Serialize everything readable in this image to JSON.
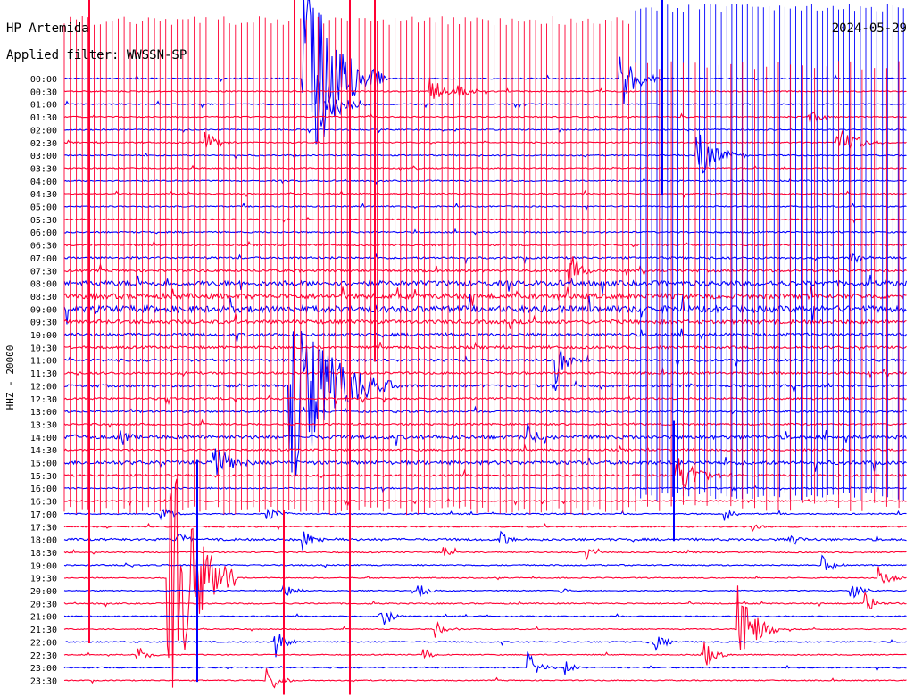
{
  "header": {
    "station": "HP Artemida",
    "filter_text": "Applied filter: WWSSN-SP",
    "date": "2024-05-29"
  },
  "chart_data": {
    "type": "helicorder",
    "title": "HP Artemida",
    "subtitle": "Applied filter: WWSSN-SP",
    "date": "2024-05-29",
    "ylabel": "HHZ - 20000",
    "minutes_per_line": 30,
    "colors": {
      "even_line": "#0000ff",
      "odd_line": "#ff0033",
      "background": "#ffffff"
    },
    "line_labels": [
      "00:00",
      "00:30",
      "01:00",
      "01:30",
      "02:00",
      "02:30",
      "03:00",
      "03:30",
      "04:00",
      "04:30",
      "05:00",
      "05:30",
      "06:00",
      "06:30",
      "07:00",
      "07:30",
      "08:00",
      "08:30",
      "09:00",
      "09:30",
      "10:00",
      "10:30",
      "11:00",
      "11:30",
      "12:00",
      "12:30",
      "13:00",
      "13:30",
      "14:00",
      "14:30",
      "15:00",
      "15:30",
      "16:00",
      "16:30",
      "17:00",
      "17:30",
      "18:00",
      "18:30",
      "19:00",
      "19:30",
      "20:00",
      "20:30",
      "21:00",
      "21:30",
      "22:00",
      "22:30",
      "23:00",
      "23:30"
    ],
    "noise_levels": [
      0.5,
      0.5,
      0.5,
      0.5,
      0.5,
      0.5,
      0.5,
      0.5,
      0.5,
      0.5,
      0.5,
      0.5,
      0.6,
      0.7,
      0.8,
      1.0,
      2.0,
      2.0,
      2.5,
      1.5,
      1.2,
      1.0,
      1.0,
      0.9,
      1.0,
      0.8,
      0.8,
      0.7,
      1.5,
      0.8,
      1.5,
      0.8,
      0.6,
      0.6,
      0.5,
      0.5,
      0.9,
      0.5,
      0.5,
      0.4,
      0.4,
      0.5,
      0.4,
      0.4,
      0.5,
      0.4,
      0.5,
      0.4
    ],
    "events": [
      {
        "line": 0,
        "minute": 8.5,
        "amplitude": 150,
        "duration_min": 3
      },
      {
        "line": 0,
        "minute": 19.8,
        "amplitude": 40,
        "duration_min": 1.5
      },
      {
        "line": 1,
        "minute": 13,
        "amplitude": 18,
        "duration_min": 1.5
      },
      {
        "line": 1,
        "minute": 14,
        "amplitude": 12,
        "duration_min": 1
      },
      {
        "line": 2,
        "minute": 9,
        "amplitude": 40,
        "duration_min": 2
      },
      {
        "line": 3,
        "minute": 26.5,
        "amplitude": 12,
        "duration_min": 1
      },
      {
        "line": 5,
        "minute": 27.5,
        "amplitude": 20,
        "duration_min": 2
      },
      {
        "line": 5,
        "minute": 5,
        "amplitude": 14,
        "duration_min": 1.5
      },
      {
        "line": 6,
        "minute": 22.5,
        "amplitude": 30,
        "duration_min": 2
      },
      {
        "line": 14,
        "minute": 28,
        "amplitude": 10,
        "duration_min": 1
      },
      {
        "line": 15,
        "minute": 18,
        "amplitude": 25,
        "duration_min": 1.2
      },
      {
        "line": 22,
        "minute": 17.5,
        "amplitude": 30,
        "duration_min": 1
      },
      {
        "line": 24,
        "minute": 8,
        "amplitude": 130,
        "duration_min": 4
      },
      {
        "line": 24,
        "minute": 11,
        "amplitude": 15,
        "duration_min": 1
      },
      {
        "line": 28,
        "minute": 2,
        "amplitude": 10,
        "duration_min": 1
      },
      {
        "line": 28,
        "minute": 16.5,
        "amplitude": 14,
        "duration_min": 1
      },
      {
        "line": 30,
        "minute": 5.3,
        "amplitude": 25,
        "duration_min": 1.5
      },
      {
        "line": 31,
        "minute": 21.8,
        "amplitude": 30,
        "duration_min": 2
      },
      {
        "line": 34,
        "minute": 3.4,
        "amplitude": 12,
        "duration_min": 1
      },
      {
        "line": 34,
        "minute": 7.2,
        "amplitude": 10,
        "duration_min": 1.2
      },
      {
        "line": 34,
        "minute": 23.5,
        "amplitude": 8,
        "duration_min": 0.8
      },
      {
        "line": 35,
        "minute": 24.5,
        "amplitude": 6,
        "duration_min": 0.6
      },
      {
        "line": 36,
        "minute": 4,
        "amplitude": 10,
        "duration_min": 1
      },
      {
        "line": 36,
        "minute": 8.5,
        "amplitude": 12,
        "duration_min": 1.5
      },
      {
        "line": 36,
        "minute": 15.5,
        "amplitude": 10,
        "duration_min": 1
      },
      {
        "line": 36,
        "minute": 25.8,
        "amplitude": 10,
        "duration_min": 1
      },
      {
        "line": 37,
        "minute": 13.5,
        "amplitude": 8,
        "duration_min": 0.8
      },
      {
        "line": 37,
        "minute": 18.6,
        "amplitude": 8,
        "duration_min": 0.8
      },
      {
        "line": 38,
        "minute": 2.2,
        "amplitude": 6,
        "duration_min": 0.6
      },
      {
        "line": 38,
        "minute": 27,
        "amplitude": 12,
        "duration_min": 1
      },
      {
        "line": 39,
        "minute": 3.7,
        "amplitude": 180,
        "duration_min": 2.5
      },
      {
        "line": 39,
        "minute": 29,
        "amplitude": 15,
        "duration_min": 1
      },
      {
        "line": 40,
        "minute": 7.8,
        "amplitude": 12,
        "duration_min": 1
      },
      {
        "line": 40,
        "minute": 12.6,
        "amplitude": 12,
        "duration_min": 0.8
      },
      {
        "line": 40,
        "minute": 17.6,
        "amplitude": 8,
        "duration_min": 0.6
      },
      {
        "line": 40,
        "minute": 28,
        "amplitude": 12,
        "duration_min": 1
      },
      {
        "line": 41,
        "minute": 28.5,
        "amplitude": 12,
        "duration_min": 1.2
      },
      {
        "line": 42,
        "minute": 11.2,
        "amplitude": 20,
        "duration_min": 1
      },
      {
        "line": 43,
        "minute": 13.2,
        "amplitude": 10,
        "duration_min": 1
      },
      {
        "line": 43,
        "minute": 24,
        "amplitude": 60,
        "duration_min": 1.5
      },
      {
        "line": 44,
        "minute": 7.5,
        "amplitude": 20,
        "duration_min": 1
      },
      {
        "line": 44,
        "minute": 21,
        "amplitude": 12,
        "duration_min": 1
      },
      {
        "line": 45,
        "minute": 2.6,
        "amplitude": 15,
        "duration_min": 0.8
      },
      {
        "line": 45,
        "minute": 12.8,
        "amplitude": 10,
        "duration_min": 0.8
      },
      {
        "line": 45,
        "minute": 22.8,
        "amplitude": 18,
        "duration_min": 1
      },
      {
        "line": 46,
        "minute": 16.5,
        "amplitude": 20,
        "duration_min": 1
      },
      {
        "line": 46,
        "minute": 17.8,
        "amplitude": 10,
        "duration_min": 0.8
      },
      {
        "line": 47,
        "minute": 7.2,
        "amplitude": 20,
        "duration_min": 1
      },
      {
        "line": 47,
        "minute": 7.2,
        "amplitude": 10,
        "duration_min": 1
      }
    ]
  }
}
